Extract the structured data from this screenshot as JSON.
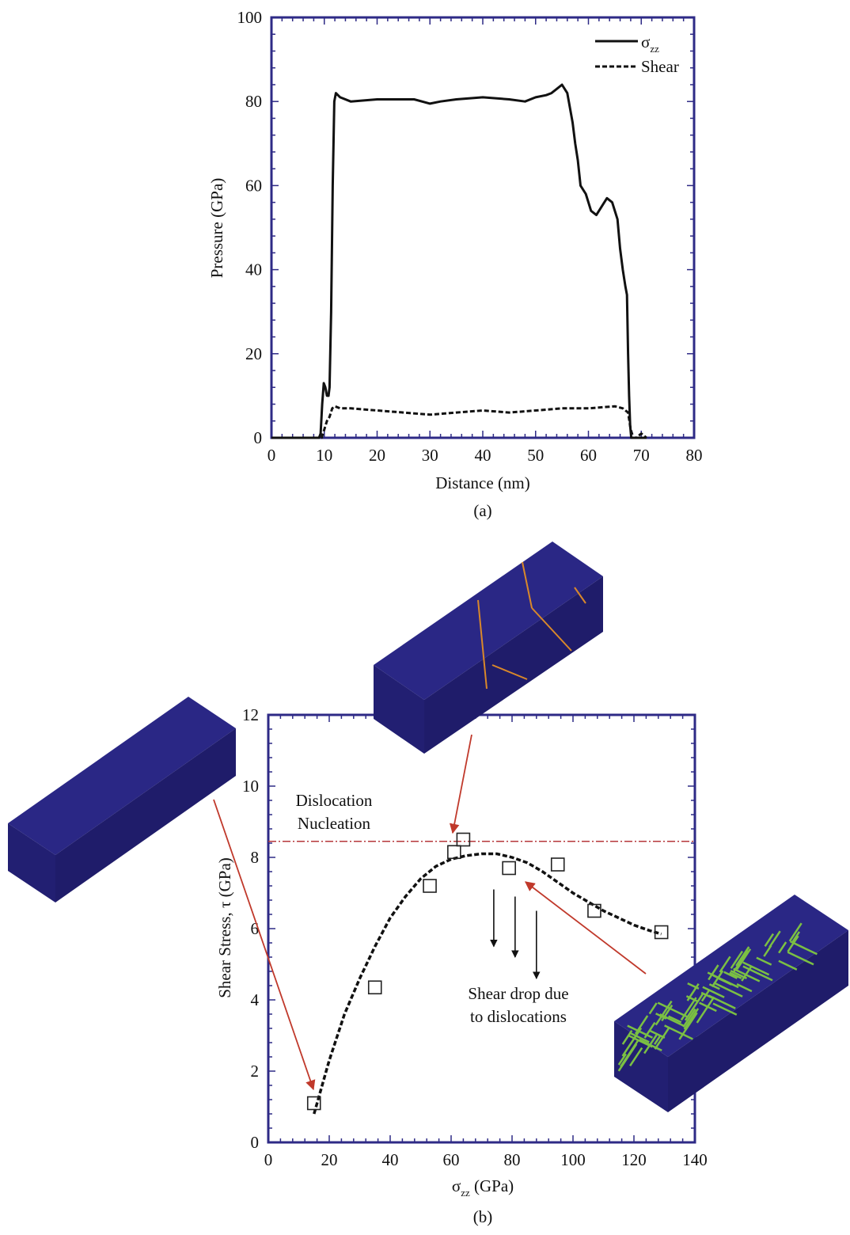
{
  "colors": {
    "frame": "#2e2a86",
    "curve": "#111111",
    "nucleation_line": "#b5373a",
    "arrow_red": "#c0392b",
    "block": "#24217a",
    "defect_green": "#7bc043",
    "defect_orange": "#d9882a"
  },
  "chart_data": [
    {
      "type": "line",
      "panel_label": "(a)",
      "xlabel": "Distance (nm)",
      "ylabel": "Pressure (GPa)",
      "xlim": [
        0,
        80
      ],
      "ylim": [
        0,
        100
      ],
      "xticks": [
        0,
        10,
        20,
        30,
        40,
        50,
        60,
        70,
        80
      ],
      "yticks": [
        0,
        20,
        40,
        60,
        80,
        100
      ],
      "legend_position": "top-right",
      "series": [
        {
          "name": "σzz",
          "legend_main": "σ",
          "legend_sub": "zz",
          "style": "solid",
          "x": [
            0,
            9.0,
            9.3,
            9.6,
            9.9,
            10.2,
            10.5,
            10.8,
            11.0,
            11.3,
            11.6,
            11.9,
            12.2,
            13,
            15,
            20,
            25,
            27,
            30,
            32,
            35,
            40,
            45,
            48,
            50,
            52,
            53,
            54,
            55,
            56,
            57,
            57.5,
            58,
            58.5,
            59.5,
            60.5,
            61.5,
            62.5,
            63.5,
            64.5,
            65.5,
            66.0,
            66.5,
            67.0,
            67.3,
            67.5,
            67.7,
            67.9,
            68.1,
            69,
            70,
            71
          ],
          "y": [
            0,
            0,
            1,
            8,
            13,
            12,
            10,
            10,
            12,
            30,
            60,
            80,
            82,
            81,
            80,
            80.5,
            80.5,
            80.5,
            79.5,
            80,
            80.5,
            81,
            80.5,
            80,
            81,
            81.5,
            82,
            83,
            84,
            82,
            75,
            70,
            66,
            60,
            58,
            54,
            53,
            55,
            57,
            56,
            52,
            45,
            40,
            36,
            34,
            20,
            10,
            3,
            0,
            0,
            0,
            0
          ]
        },
        {
          "name": "Shear",
          "legend_main": "Shear",
          "legend_sub": "",
          "style": "dashed",
          "x": [
            0,
            9.5,
            10.0,
            10.5,
            11.0,
            11.5,
            12.0,
            13,
            15,
            20,
            25,
            30,
            35,
            40,
            45,
            50,
            55,
            60,
            65,
            66.5,
            67.5,
            68.0,
            68.5,
            69,
            70,
            71
          ],
          "y": [
            0,
            0,
            2,
            4,
            5,
            7,
            7.5,
            7,
            7,
            6.5,
            6,
            5.5,
            6,
            6.5,
            6,
            6.5,
            7,
            7,
            7.5,
            7,
            6,
            2,
            0,
            0,
            1,
            0
          ]
        }
      ]
    },
    {
      "type": "scatter",
      "panel_label": "(b)",
      "xlabel_main": "σ",
      "xlabel_sub": "zz",
      "xlabel_rest": " (GPa)",
      "ylabel": "Shear Stress, τ (GPa)",
      "xlim": [
        0,
        140
      ],
      "ylim": [
        0,
        12
      ],
      "xticks": [
        0,
        20,
        40,
        60,
        80,
        100,
        120,
        140
      ],
      "yticks": [
        0,
        2,
        4,
        6,
        8,
        10,
        12
      ],
      "points": [
        {
          "x": 15,
          "y": 1.1
        },
        {
          "x": 35,
          "y": 4.35
        },
        {
          "x": 53,
          "y": 7.2
        },
        {
          "x": 61,
          "y": 8.15
        },
        {
          "x": 64,
          "y": 8.5
        },
        {
          "x": 79,
          "y": 7.7
        },
        {
          "x": 95,
          "y": 7.8
        },
        {
          "x": 107,
          "y": 6.5
        },
        {
          "x": 129,
          "y": 5.9
        }
      ],
      "fit_curve": {
        "style": "dashed",
        "x": [
          15,
          20,
          25,
          30,
          35,
          40,
          45,
          50,
          55,
          60,
          65,
          70,
          75,
          80,
          85,
          90,
          95,
          100,
          105,
          110,
          115,
          120,
          125,
          129
        ],
        "y": [
          0.8,
          2.3,
          3.6,
          4.6,
          5.5,
          6.3,
          6.9,
          7.4,
          7.75,
          7.95,
          8.05,
          8.1,
          8.1,
          8.0,
          7.85,
          7.6,
          7.3,
          7.0,
          6.75,
          6.5,
          6.3,
          6.1,
          5.95,
          5.85
        ]
      },
      "nucleation_line": {
        "y": 8.45,
        "label_line1": "Dislocation",
        "label_line2": "Nucleation"
      },
      "drop_annotation": {
        "label_line1": "Shear drop due",
        "label_line2": "to dislocations",
        "arrows": [
          {
            "x": 74,
            "y_from": 7.1,
            "y_to": 5.5
          },
          {
            "x": 81,
            "y_from": 6.9,
            "y_to": 5.2
          },
          {
            "x": 88,
            "y_from": 6.5,
            "y_to": 4.6
          }
        ]
      }
    }
  ]
}
